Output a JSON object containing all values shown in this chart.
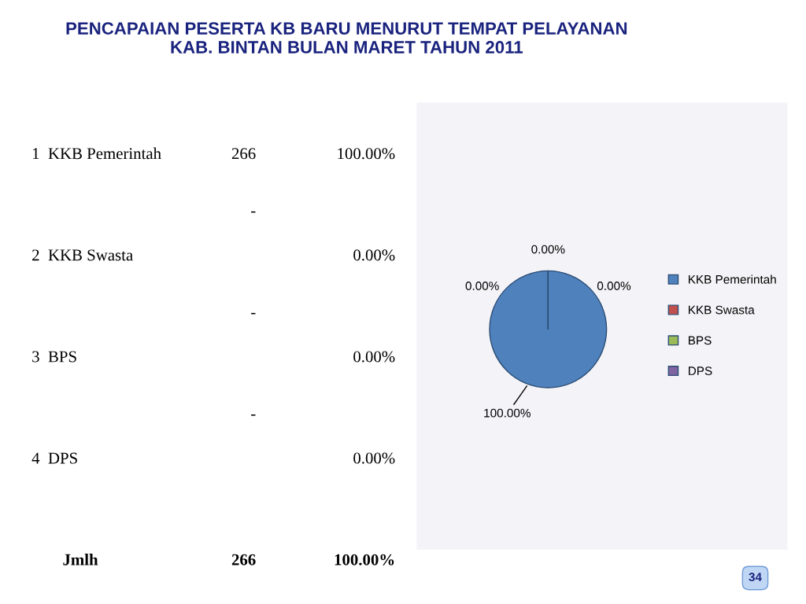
{
  "chart_data": [
    {
      "type": "other",
      "title": "PENCAPAIAN PESERTA KB BARU MENURUT TEMPAT PELAYANAN\nKAB. BINTAN BULAN MARET TAHUN 2011",
      "annotations": [
        "1  KKB Pemerintah",
        "266",
        "100.00%",
        "2  KKB Swasta",
        "-",
        "0.00%",
        "3  BPS",
        "-",
        "0.00%",
        "4  DPS",
        "-",
        "0.00%",
        "Jmlh",
        "266",
        "100.00%",
        "34"
      ]
    },
    {
      "type": "pie",
      "categories": [
        "KKB Pemerintah",
        "KKB Swasta",
        "BPS",
        "DPS"
      ],
      "values": [
        100,
        0,
        0,
        0
      ],
      "colors": [
        "#4f81bd",
        "#c0504d",
        "#9bbb59",
        "#8064a2"
      ],
      "value_labels": [
        "100.00%",
        "0.00%",
        "0.00%",
        "0.00%"
      ],
      "legend": "right"
    }
  ]
}
